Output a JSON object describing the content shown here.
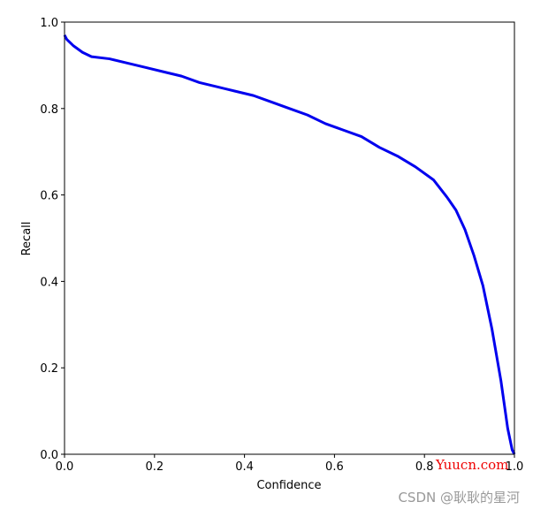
{
  "chart_data": {
    "type": "line",
    "xlabel": "Confidence",
    "ylabel": "Recall",
    "x": [
      0,
      0.005,
      0.02,
      0.04,
      0.06,
      0.1,
      0.14,
      0.18,
      0.22,
      0.26,
      0.3,
      0.34,
      0.38,
      0.42,
      0.46,
      0.5,
      0.54,
      0.58,
      0.62,
      0.66,
      0.7,
      0.74,
      0.78,
      0.82,
      0.85,
      0.87,
      0.89,
      0.91,
      0.93,
      0.95,
      0.97,
      0.985,
      0.995,
      1.0
    ],
    "series": [
      {
        "name": "Recall",
        "color": "#0000ee",
        "values": [
          0.97,
          0.96,
          0.945,
          0.93,
          0.92,
          0.915,
          0.905,
          0.895,
          0.885,
          0.875,
          0.86,
          0.85,
          0.84,
          0.83,
          0.815,
          0.8,
          0.785,
          0.765,
          0.75,
          0.735,
          0.71,
          0.69,
          0.665,
          0.635,
          0.595,
          0.565,
          0.52,
          0.46,
          0.39,
          0.29,
          0.17,
          0.06,
          0.01,
          0.0
        ]
      }
    ],
    "xlim": [
      0,
      1
    ],
    "ylim": [
      0,
      1
    ],
    "xticks": [
      {
        "value": 0,
        "label": "0.0"
      },
      0.2,
      0.4,
      0.6,
      0.8,
      {
        "value": 1,
        "label": "1.0"
      }
    ],
    "yticks": [
      {
        "value": 0,
        "label": "0.0"
      },
      0.2,
      0.4,
      0.6,
      0.8,
      {
        "value": 1,
        "label": "1.0"
      }
    ],
    "grid": false,
    "watermarks": [
      "Yuucn.com",
      "CSDN @耿耿的星河"
    ]
  }
}
